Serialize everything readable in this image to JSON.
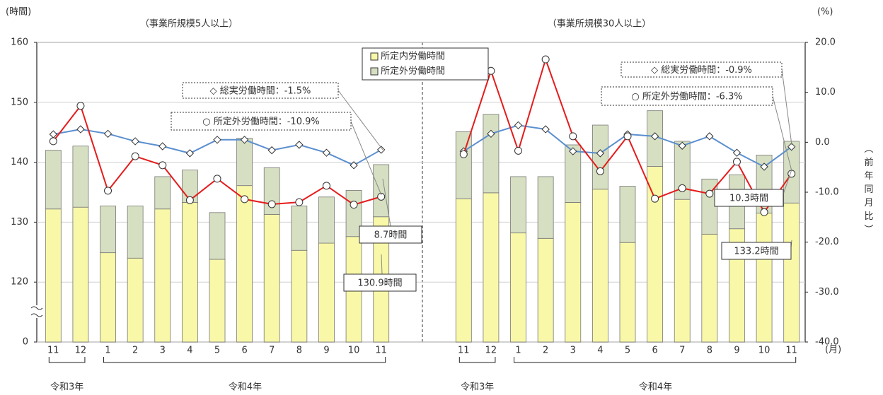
{
  "chart_data": [
    {
      "type": "bar",
      "title": "（事業所規模5人以上）",
      "ylabel": "(時間)",
      "tick_labels": "left",
      "categories": [
        "11",
        "12",
        "1",
        "2",
        "3",
        "4",
        "5",
        "6",
        "7",
        "8",
        "9",
        "10",
        "11"
      ],
      "ylim": [
        0,
        160
      ],
      "yticks": [
        0,
        120,
        130,
        140,
        150,
        160
      ],
      "axis_break": true,
      "y2lim": [
        -40,
        20
      ],
      "series": [
        {
          "name": "所定内労働時間",
          "type": "bar",
          "color": "#f8f8a8",
          "values": [
            132.2,
            132.5,
            124.9,
            124.0,
            132.2,
            133.3,
            123.8,
            136.1,
            131.3,
            125.3,
            126.5,
            127.6,
            130.9
          ]
        },
        {
          "name": "所定外労働時間",
          "type": "bar",
          "color": "#d6dfc2",
          "values": [
            9.8,
            10.2,
            7.8,
            8.7,
            5.4,
            5.4,
            7.8,
            7.9,
            7.8,
            7.4,
            7.7,
            7.7,
            8.7
          ]
        },
        {
          "type": "line",
          "axis": "y2",
          "marker": "diamond",
          "color": "#5b8fcf",
          "values": [
            1.6,
            2.6,
            1.7,
            0.2,
            -0.8,
            -2.2,
            0.5,
            0.5,
            -1.6,
            -0.5,
            -2.1,
            -4.6,
            -1.5
          ]
        },
        {
          "type": "line",
          "axis": "y2",
          "marker": "circle",
          "color": "#e51c1c",
          "values": [
            0.2,
            7.3,
            -9.7,
            -2.8,
            -4.6,
            -11.6,
            -7.3,
            -11.4,
            -12.4,
            -12.0,
            -8.7,
            -12.5,
            -10.9
          ]
        }
      ],
      "callouts": [
        "◇ 総実労働時間：-1.5%",
        "○ 所定外労働時間：-10.9%",
        "8.7時間",
        "130.9時間"
      ],
      "era_labels": [
        "令和3年",
        "令和4年"
      ]
    },
    {
      "type": "bar",
      "title": "（事業所規模30人以上）",
      "y2label": "(%)",
      "y2title": "（前年同月比）",
      "xlabel": "(月)",
      "tick_labels": "right",
      "categories": [
        "11",
        "12",
        "1",
        "2",
        "3",
        "4",
        "5",
        "6",
        "7",
        "8",
        "9",
        "10",
        "11"
      ],
      "ylim": [
        0,
        160
      ],
      "yticks": [
        0,
        120,
        130,
        140,
        150,
        160
      ],
      "axis_break": true,
      "y2lim": [
        -40,
        20
      ],
      "y2ticks": [
        {
          "value": -40,
          "label": "-40.0"
        },
        {
          "value": -30,
          "label": "-30.0"
        },
        {
          "value": -20,
          "label": "-20.0"
        },
        {
          "value": -10,
          "label": "-10.0"
        },
        {
          "value": 0,
          "label": "0.0"
        },
        {
          "value": 10,
          "label": "10.0"
        },
        {
          "value": 20,
          "label": "20.0"
        }
      ],
      "series": [
        {
          "type": "bar",
          "color": "#f8f8a8",
          "values": [
            133.9,
            134.9,
            128.2,
            127.3,
            133.3,
            135.5,
            126.6,
            139.3,
            133.8,
            128.0,
            128.9,
            131.5,
            133.2
          ]
        },
        {
          "type": "bar",
          "color": "#d6dfc2",
          "values": [
            11.2,
            13.1,
            9.4,
            10.3,
            9.6,
            10.7,
            9.4,
            9.3,
            9.7,
            9.2,
            9.0,
            9.7,
            10.3
          ]
        },
        {
          "type": "line",
          "axis": "y2",
          "marker": "diamond",
          "color": "#5b8fcf",
          "values": [
            -1.8,
            1.7,
            3.4,
            2.6,
            -1.8,
            -2.2,
            1.6,
            1.2,
            -0.7,
            1.2,
            -2.1,
            -4.9,
            -0.9
          ]
        },
        {
          "type": "line",
          "axis": "y2",
          "marker": "circle",
          "color": "#e51c1c",
          "values": [
            -2.4,
            14.3,
            -1.7,
            16.6,
            1.2,
            -5.8,
            1.2,
            -11.3,
            -9.2,
            -10.3,
            -3.9,
            -14.0,
            -6.3
          ]
        }
      ],
      "callouts": [
        "◇ 総実労働時間：-0.9%",
        "○ 所定外労働時間：-6.3%",
        "10.3時間",
        "133.2時間"
      ],
      "era_labels": [
        "令和3年",
        "令和4年"
      ]
    }
  ]
}
